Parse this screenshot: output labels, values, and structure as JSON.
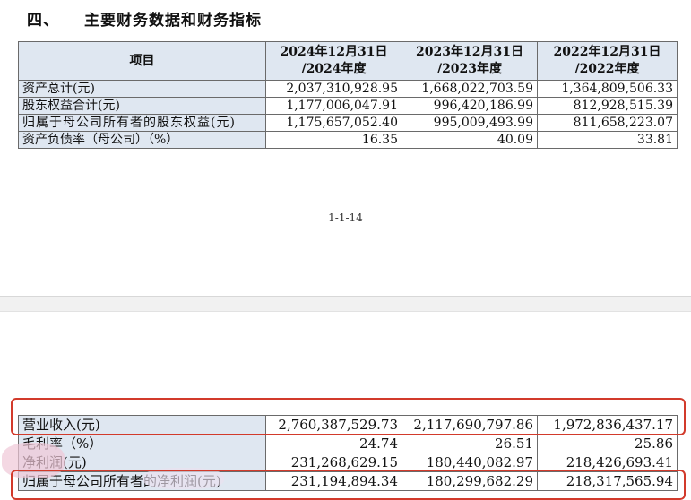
{
  "section": {
    "number": "四、",
    "title": "主要财务数据和财务指标"
  },
  "table1": {
    "headers": [
      "项目",
      "2024年12月31日\n/2024年度",
      "2023年12月31日\n/2023年度",
      "2022年12月31日\n/2022年度"
    ],
    "rows": [
      [
        "资产总计(元)",
        "2,037,310,928.95",
        "1,668,022,703.59",
        "1,364,809,506.33"
      ],
      [
        "股东权益合计(元)",
        "1,177,006,047.91",
        "996,420,186.99",
        "812,928,515.39"
      ],
      [
        "归属于母公司所有者的股东权益(元)",
        "1,175,657,052.40",
        "995,009,493.99",
        "811,658,223.07"
      ],
      [
        "资产负债率（母公司）（%）",
        "16.35",
        "40.09",
        "33.81"
      ]
    ]
  },
  "page_number": "1-1-14",
  "table2": {
    "rows": [
      [
        "营业收入(元)",
        "2,760,387,529.73",
        "2,117,690,797.86",
        "1,972,836,437.17"
      ],
      [
        "毛利率（%）",
        "24.74",
        "26.51",
        "25.86"
      ],
      [
        "净利润(元)",
        "231,268,629.15",
        "180,440,082.97",
        "218,426,693.41"
      ],
      [
        "归属于母公司所有者的净利润(元)",
        "231,194,894.34",
        "180,299,682.29",
        "218,317,565.94"
      ]
    ]
  },
  "colors": {
    "table_label_bg": "#dfe7f1",
    "highlight": "#d23a2b"
  }
}
